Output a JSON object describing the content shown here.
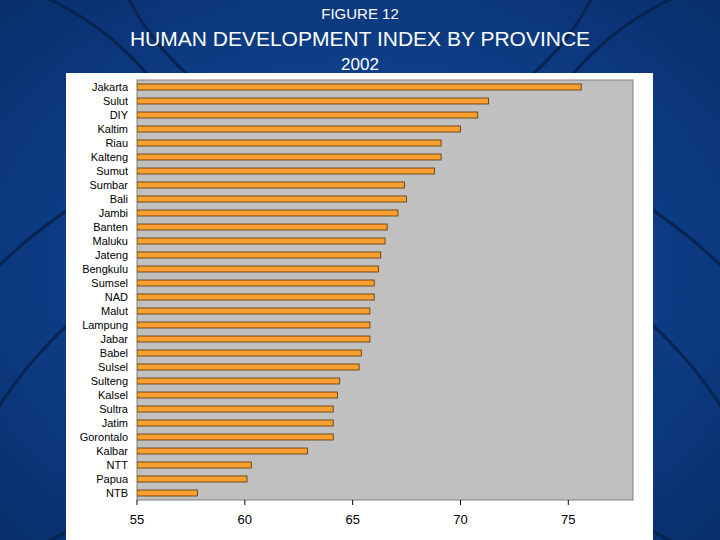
{
  "chart_data": {
    "type": "bar",
    "orientation": "horizontal",
    "title": "HUMAN DEVELOPMENT INDEX BY PROVINCE",
    "subtitle": "2002",
    "annotations": [
      "FIGURE 12"
    ],
    "categories": [
      "Jakarta",
      "Sulut",
      "DIY",
      "Kaltim",
      "Riau",
      "Kalteng",
      "Sumut",
      "Sumbar",
      "Bali",
      "Jambi",
      "Banten",
      "Maluku",
      "Jateng",
      "Bengkulu",
      "Sumsel",
      "NAD",
      "Malut",
      "Lampung",
      "Jabar",
      "Babel",
      "Sulsel",
      "Sulteng",
      "Kalsel",
      "Sultra",
      "Jatim",
      "Gorontalo",
      "Kalbar",
      "NTT",
      "Papua",
      "NTB"
    ],
    "values": [
      75.6,
      71.3,
      70.8,
      70.0,
      69.1,
      69.1,
      68.8,
      67.4,
      67.5,
      67.1,
      66.6,
      66.5,
      66.3,
      66.2,
      66.0,
      66.0,
      65.8,
      65.8,
      65.8,
      65.4,
      65.3,
      64.4,
      64.3,
      64.1,
      64.1,
      64.1,
      62.9,
      60.3,
      60.1,
      57.8
    ],
    "color": "#f7a030",
    "xlim": [
      55,
      78
    ],
    "xticks": [
      55,
      60,
      65,
      70,
      75
    ],
    "grid": false
  }
}
